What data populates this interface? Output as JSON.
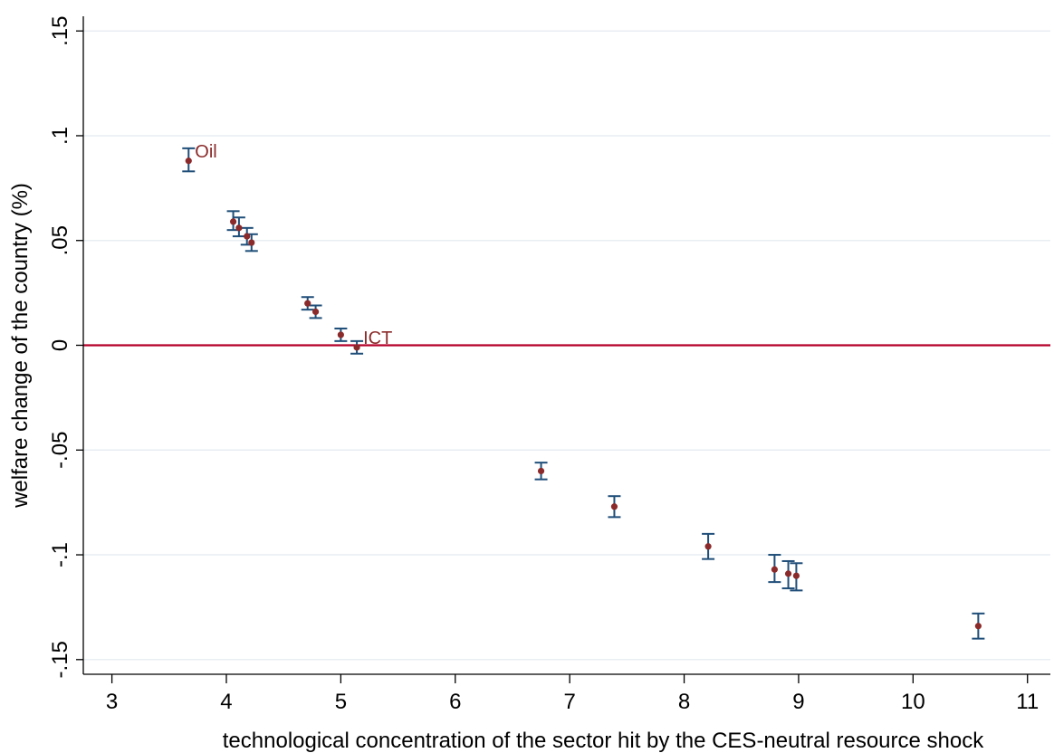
{
  "chart_data": {
    "type": "scatter",
    "title": "",
    "xlabel": "technological concentration of the sector hit by the CES-neutral resource shock",
    "ylabel": "welfare change of the country (%)",
    "xlim": [
      2.75,
      11.2
    ],
    "ylim": [
      -0.157,
      0.157
    ],
    "x_ticks": [
      {
        "value": 3,
        "label": "3"
      },
      {
        "value": 4,
        "label": "4"
      },
      {
        "value": 5,
        "label": "5"
      },
      {
        "value": 6,
        "label": "6"
      },
      {
        "value": 7,
        "label": "7"
      },
      {
        "value": 8,
        "label": "8"
      },
      {
        "value": 9,
        "label": "9"
      },
      {
        "value": 10,
        "label": "10"
      },
      {
        "value": 11,
        "label": "11"
      }
    ],
    "y_ticks": [
      {
        "value": -0.15,
        "label": "-.15"
      },
      {
        "value": -0.1,
        "label": "-.1"
      },
      {
        "value": -0.05,
        "label": "-.05"
      },
      {
        "value": 0,
        "label": "0"
      },
      {
        "value": 0.05,
        "label": ".05"
      },
      {
        "value": 0.1,
        "label": ".1"
      },
      {
        "value": 0.15,
        "label": ".15"
      }
    ],
    "grid": true,
    "reference_line": {
      "y": 0,
      "color": "#b5002a"
    },
    "colors": {
      "point": "#8b2a2a",
      "error_bar": "#1f4e79",
      "grid": "#e8eef3",
      "annotation": "#8b2a2a"
    },
    "points": [
      {
        "x": 3.67,
        "y": 0.088,
        "lo": 0.083,
        "hi": 0.094
      },
      {
        "x": 4.06,
        "y": 0.059,
        "lo": 0.055,
        "hi": 0.064
      },
      {
        "x": 4.11,
        "y": 0.056,
        "lo": 0.052,
        "hi": 0.061
      },
      {
        "x": 4.18,
        "y": 0.052,
        "lo": 0.048,
        "hi": 0.056
      },
      {
        "x": 4.22,
        "y": 0.049,
        "lo": 0.045,
        "hi": 0.053
      },
      {
        "x": 4.71,
        "y": 0.02,
        "lo": 0.017,
        "hi": 0.023
      },
      {
        "x": 4.78,
        "y": 0.016,
        "lo": 0.013,
        "hi": 0.019
      },
      {
        "x": 5.0,
        "y": 0.005,
        "lo": 0.002,
        "hi": 0.008
      },
      {
        "x": 5.14,
        "y": -0.001,
        "lo": -0.004,
        "hi": 0.002
      },
      {
        "x": 6.75,
        "y": -0.06,
        "lo": -0.064,
        "hi": -0.056
      },
      {
        "x": 7.39,
        "y": -0.077,
        "lo": -0.082,
        "hi": -0.072
      },
      {
        "x": 8.21,
        "y": -0.096,
        "lo": -0.102,
        "hi": -0.09
      },
      {
        "x": 8.79,
        "y": -0.107,
        "lo": -0.113,
        "hi": -0.1
      },
      {
        "x": 8.91,
        "y": -0.109,
        "lo": -0.116,
        "hi": -0.103
      },
      {
        "x": 8.98,
        "y": -0.11,
        "lo": -0.117,
        "hi": -0.104
      },
      {
        "x": 10.57,
        "y": -0.134,
        "lo": -0.14,
        "hi": -0.128
      }
    ],
    "annotations": [
      {
        "text": "Oil",
        "x": 3.67,
        "y": 0.088
      },
      {
        "text": "ICT",
        "x": 5.14,
        "y": -0.001
      }
    ]
  }
}
